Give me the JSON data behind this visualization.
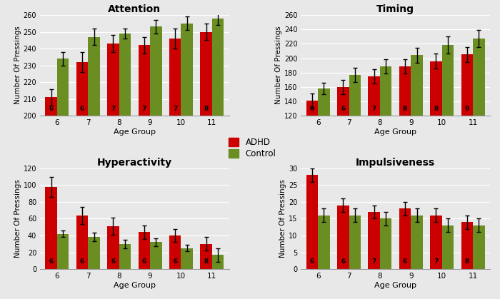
{
  "attention": {
    "title": "Attention",
    "ages": [
      6,
      7,
      8,
      9,
      10,
      11
    ],
    "adhd_vals": [
      211,
      232,
      243,
      242,
      246,
      250
    ],
    "ctrl_vals": [
      234,
      247,
      249,
      253,
      255,
      258
    ],
    "adhd_err": [
      5,
      6,
      5,
      5,
      6,
      5
    ],
    "ctrl_err": [
      4,
      5,
      3,
      4,
      4,
      4
    ],
    "adhd_n": [
      6,
      6,
      7,
      7,
      7,
      8
    ],
    "ylim": [
      200,
      260
    ],
    "yticks": [
      200,
      210,
      220,
      230,
      240,
      250,
      260
    ]
  },
  "timing": {
    "title": "Timing",
    "ages": [
      6,
      7,
      8,
      9,
      10,
      11
    ],
    "adhd_vals": [
      141,
      160,
      175,
      189,
      196,
      205
    ],
    "ctrl_vals": [
      158,
      177,
      189,
      204,
      218,
      227
    ],
    "adhd_err": [
      10,
      10,
      10,
      10,
      10,
      10
    ],
    "ctrl_err": [
      8,
      10,
      10,
      10,
      12,
      12
    ],
    "adhd_n": [
      6,
      6,
      7,
      8,
      8,
      9
    ],
    "ylim": [
      120,
      260
    ],
    "yticks": [
      120,
      140,
      160,
      180,
      200,
      220,
      240,
      260
    ]
  },
  "hyperactivity": {
    "title": "Hyperactivity",
    "ages": [
      6,
      7,
      8,
      9,
      10,
      11
    ],
    "adhd_vals": [
      98,
      64,
      51,
      44,
      40,
      30
    ],
    "ctrl_vals": [
      42,
      38,
      30,
      32,
      25,
      17
    ],
    "adhd_err": [
      12,
      10,
      10,
      8,
      8,
      8
    ],
    "ctrl_err": [
      4,
      5,
      5,
      5,
      4,
      8
    ],
    "adhd_n": [
      6,
      6,
      6,
      6,
      6,
      8
    ],
    "ylim": [
      0,
      120
    ],
    "yticks": [
      0,
      20,
      40,
      60,
      80,
      100,
      120
    ]
  },
  "impulsiveness": {
    "title": "Impulsiveness",
    "ages": [
      6,
      7,
      8,
      9,
      10,
      11
    ],
    "adhd_vals": [
      28,
      19,
      17,
      18,
      16,
      14
    ],
    "ctrl_vals": [
      16,
      16,
      15,
      16,
      13,
      13
    ],
    "adhd_err": [
      2,
      2,
      2,
      2,
      2,
      2
    ],
    "ctrl_err": [
      2,
      2,
      2,
      2,
      2,
      2
    ],
    "adhd_n": [
      6,
      6,
      7,
      6,
      7,
      8
    ],
    "ylim": [
      0,
      30
    ],
    "yticks": [
      0,
      5,
      10,
      15,
      20,
      25,
      30
    ]
  },
  "adhd_color": "#cc0000",
  "ctrl_color": "#6b8e23",
  "bar_width": 0.38,
  "ylabel": "Number Of Pressings",
  "xlabel": "Age Group",
  "bg_color": "#e8e8e8",
  "plot_bg": "#e8e8e8",
  "legend_adhd": "ADHD",
  "legend_ctrl": "Control"
}
